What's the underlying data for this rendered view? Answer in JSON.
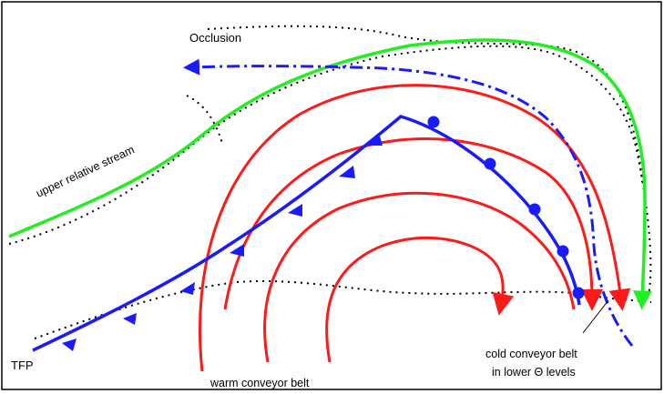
{
  "labels": {
    "occlusion": "Occlusion",
    "upper_relative_stream": "upper relative stream",
    "tfp": "TFP",
    "warm_conveyor_belt": "warm conveyor belt",
    "cold_conveyor_belt_line1": "cold conveyor belt",
    "cold_conveyor_belt_line2": "in lower Θ levels"
  },
  "colors": {
    "front": "#1a1aff",
    "warm_conveyor": "#ff1a1a",
    "upper_stream": "#22ee22",
    "cold_conveyor": "#1a1aff",
    "boundary": "#000000"
  }
}
